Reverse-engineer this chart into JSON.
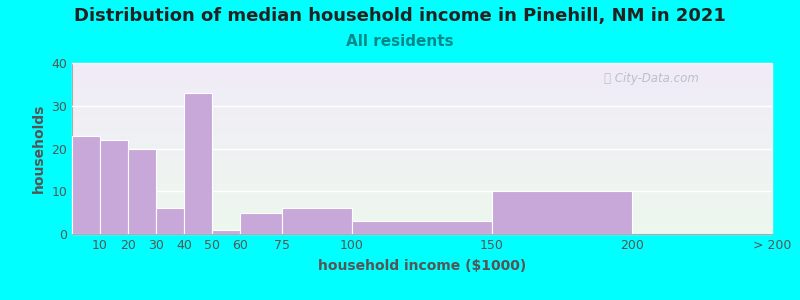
{
  "title": "Distribution of median household income in Pinehill, NM in 2021",
  "subtitle": "All residents",
  "xlabel": "household income ($1000)",
  "ylabel": "households",
  "background_color": "#00FFFF",
  "bar_color": "#C8A8D8",
  "bar_edge_color": "#ffffff",
  "bin_edges": [
    0,
    10,
    20,
    30,
    40,
    50,
    60,
    75,
    100,
    150,
    200,
    250
  ],
  "values": [
    23,
    22,
    20,
    6,
    33,
    1,
    5,
    6,
    3,
    10,
    0
  ],
  "xtick_positions": [
    10,
    20,
    30,
    40,
    50,
    60,
    75,
    100,
    150,
    200,
    250
  ],
  "xtick_labels": [
    "10",
    "20",
    "30",
    "40",
    "50",
    "60",
    "75",
    "100",
    "150",
    "200",
    "> 200"
  ],
  "ylim": [
    0,
    40
  ],
  "yticks": [
    0,
    10,
    20,
    30,
    40
  ],
  "title_fontsize": 13,
  "subtitle_fontsize": 11,
  "axis_label_fontsize": 10,
  "tick_fontsize": 9,
  "watermark_text": "City-Data.com",
  "watermark_color": "#b0b8c8",
  "title_color": "#222222",
  "subtitle_color": "#008888",
  "axis_label_color": "#555555",
  "tick_color": "#555555",
  "grid_color": "#ffffff",
  "grid_linewidth": 1.0,
  "xlim": [
    0,
    250
  ]
}
